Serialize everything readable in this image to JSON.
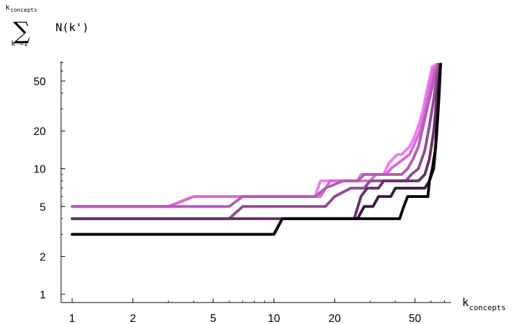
{
  "chart_data": {
    "type": "line",
    "xscale": "log",
    "yscale": "log",
    "xlim": [
      0.8,
      70
    ],
    "ylim": [
      0.87,
      70
    ],
    "x_ticks": [
      1,
      2,
      5,
      10,
      20,
      50
    ],
    "y_ticks": [
      1,
      2,
      5,
      10,
      20,
      50
    ],
    "xlabel": {
      "base": "k",
      "sub": "concepts"
    },
    "ylabel": {
      "sum_upper_base": "k",
      "sum_upper_sub": "concepts",
      "sum_symbol": "∑",
      "sum_lower": "k'=1",
      "term": "N(k')"
    },
    "grid": false,
    "legend": "none",
    "series": [
      {
        "color": "#F07CF0",
        "points": [
          [
            1,
            5
          ],
          [
            3,
            5
          ],
          [
            4,
            6
          ],
          [
            16,
            6
          ],
          [
            17,
            8
          ],
          [
            26,
            8
          ],
          [
            27,
            9
          ],
          [
            35,
            9
          ],
          [
            37,
            11
          ],
          [
            39,
            12
          ],
          [
            41,
            13
          ],
          [
            43,
            13
          ],
          [
            45,
            14
          ],
          [
            47,
            15
          ],
          [
            49,
            17
          ],
          [
            51,
            20
          ],
          [
            53,
            24
          ],
          [
            55,
            30
          ],
          [
            57,
            40
          ],
          [
            59,
            52
          ],
          [
            61,
            65
          ],
          [
            64,
            68
          ]
        ]
      },
      {
        "color": "#D96AD6",
        "points": [
          [
            1,
            5
          ],
          [
            3,
            5
          ],
          [
            4,
            6
          ],
          [
            17,
            6
          ],
          [
            19,
            8
          ],
          [
            30,
            8
          ],
          [
            32,
            9
          ],
          [
            36,
            9
          ],
          [
            38,
            10
          ],
          [
            41,
            11
          ],
          [
            44,
            12
          ],
          [
            47,
            13
          ],
          [
            50,
            16
          ],
          [
            53,
            20
          ],
          [
            56,
            28
          ],
          [
            58,
            38
          ],
          [
            60,
            50
          ],
          [
            62,
            62
          ],
          [
            65,
            68
          ]
        ]
      },
      {
        "color": "#B45CB4",
        "points": [
          [
            1,
            5
          ],
          [
            6,
            5
          ],
          [
            7,
            6
          ],
          [
            16,
            6
          ],
          [
            18,
            7
          ],
          [
            22,
            8
          ],
          [
            26,
            8
          ],
          [
            28,
            9
          ],
          [
            41,
            9
          ],
          [
            43,
            9
          ],
          [
            46,
            10
          ],
          [
            49,
            12
          ],
          [
            52,
            15
          ],
          [
            55,
            22
          ],
          [
            58,
            32
          ],
          [
            61,
            45
          ],
          [
            63,
            58
          ],
          [
            65,
            68
          ]
        ]
      },
      {
        "color": "#924A92",
        "points": [
          [
            1,
            4
          ],
          [
            6,
            4
          ],
          [
            7,
            5
          ],
          [
            16,
            5
          ],
          [
            18,
            5
          ],
          [
            20,
            6
          ],
          [
            24,
            7
          ],
          [
            28,
            7
          ],
          [
            30,
            8
          ],
          [
            42,
            8
          ],
          [
            45,
            8
          ],
          [
            48,
            9
          ],
          [
            52,
            10
          ],
          [
            56,
            14
          ],
          [
            59,
            22
          ],
          [
            62,
            36
          ],
          [
            64,
            52
          ],
          [
            66,
            68
          ]
        ]
      },
      {
        "color": "#6A2E6A",
        "points": [
          [
            1,
            4
          ],
          [
            10,
            4
          ],
          [
            11,
            4
          ],
          [
            25,
            4
          ],
          [
            27,
            6
          ],
          [
            29,
            7
          ],
          [
            33,
            7
          ],
          [
            35,
            8
          ],
          [
            45,
            8
          ],
          [
            48,
            8
          ],
          [
            52,
            8
          ],
          [
            56,
            9
          ],
          [
            59,
            12
          ],
          [
            62,
            20
          ],
          [
            64,
            36
          ],
          [
            66,
            55
          ],
          [
            67,
            68
          ]
        ]
      },
      {
        "color": "#3D1A3D",
        "points": [
          [
            1,
            3
          ],
          [
            10,
            3
          ],
          [
            11,
            4
          ],
          [
            26,
            4
          ],
          [
            28,
            5
          ],
          [
            31,
            5
          ],
          [
            33,
            6
          ],
          [
            38,
            6
          ],
          [
            40,
            7
          ],
          [
            52,
            7
          ],
          [
            56,
            7
          ],
          [
            59,
            8
          ],
          [
            62,
            10
          ],
          [
            64,
            18
          ],
          [
            66,
            40
          ],
          [
            67,
            68
          ]
        ]
      },
      {
        "color": "#000000",
        "points": [
          [
            1,
            3
          ],
          [
            10,
            3
          ],
          [
            11,
            4
          ],
          [
            42,
            4
          ],
          [
            44,
            5
          ],
          [
            46,
            6
          ],
          [
            58,
            6
          ],
          [
            59,
            8
          ],
          [
            61,
            10
          ],
          [
            63,
            14
          ],
          [
            65,
            28
          ],
          [
            66,
            48
          ],
          [
            67,
            68
          ]
        ]
      }
    ]
  }
}
